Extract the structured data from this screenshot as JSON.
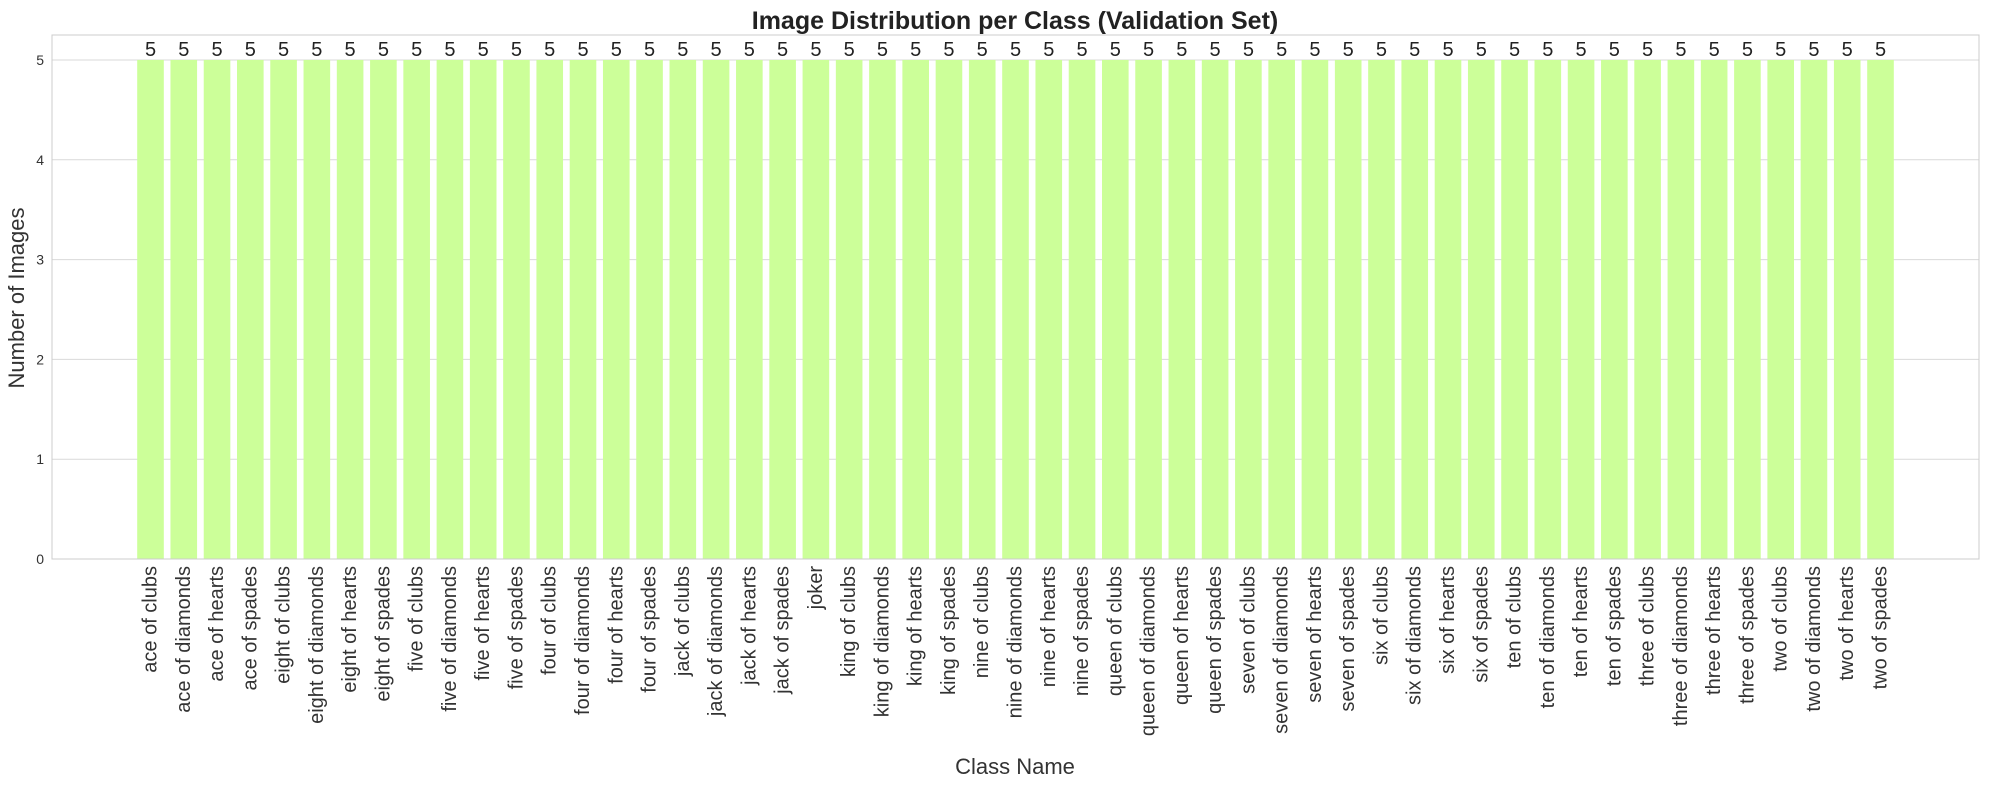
{
  "chart_data": {
    "type": "bar",
    "title": "Image Distribution per Class (Validation Set)",
    "xlabel": "Class Name",
    "ylabel": "Number of Images",
    "ylim": [
      0,
      5.25
    ],
    "yticks": [
      0,
      1,
      2,
      3,
      4,
      5
    ],
    "grid": true,
    "bar_color": "#ccff99",
    "categories": [
      "ace of clubs",
      "ace of diamonds",
      "ace of hearts",
      "ace of spades",
      "eight of clubs",
      "eight of diamonds",
      "eight of hearts",
      "eight of spades",
      "five of clubs",
      "five of diamonds",
      "five of hearts",
      "five of spades",
      "four of clubs",
      "four of diamonds",
      "four of hearts",
      "four of spades",
      "jack of clubs",
      "jack of diamonds",
      "jack of hearts",
      "jack of spades",
      "joker",
      "king of clubs",
      "king of diamonds",
      "king of hearts",
      "king of spades",
      "nine of clubs",
      "nine of diamonds",
      "nine of hearts",
      "nine of spades",
      "queen of clubs",
      "queen of diamonds",
      "queen of hearts",
      "queen of spades",
      "seven of clubs",
      "seven of diamonds",
      "seven of hearts",
      "seven of spades",
      "six of clubs",
      "six of diamonds",
      "six of hearts",
      "six of spades",
      "ten of clubs",
      "ten of diamonds",
      "ten of hearts",
      "ten of spades",
      "three of clubs",
      "three of diamonds",
      "three of hearts",
      "three of spades",
      "two of clubs",
      "two of diamonds",
      "two of hearts",
      "two of spades"
    ],
    "values": [
      5,
      5,
      5,
      5,
      5,
      5,
      5,
      5,
      5,
      5,
      5,
      5,
      5,
      5,
      5,
      5,
      5,
      5,
      5,
      5,
      5,
      5,
      5,
      5,
      5,
      5,
      5,
      5,
      5,
      5,
      5,
      5,
      5,
      5,
      5,
      5,
      5,
      5,
      5,
      5,
      5,
      5,
      5,
      5,
      5,
      5,
      5,
      5,
      5,
      5,
      5,
      5,
      5
    ]
  }
}
